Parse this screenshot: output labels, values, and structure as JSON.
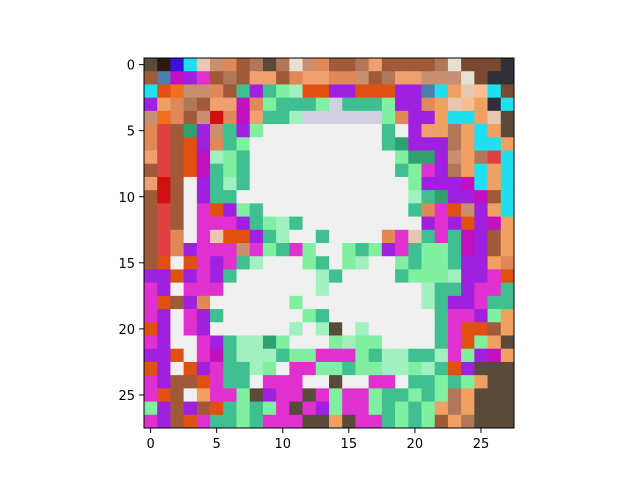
{
  "chart_data": {
    "type": "heatmap",
    "title": "",
    "xlabel": "",
    "ylabel": "",
    "cols": 28,
    "rows": 28,
    "xlim": [
      -0.5,
      27.5
    ],
    "ylim": [
      27.5,
      -0.5
    ],
    "x_ticks": [
      0,
      5,
      10,
      15,
      20,
      25
    ],
    "y_ticks": [
      0,
      5,
      10,
      15,
      20,
      25
    ],
    "grid": false,
    "palette": [
      "#5a4a3a",
      "#2a1a10",
      "#3a10e0",
      "#20e0f0",
      "#e8c8b0",
      "#c89070",
      "#e08858",
      "#f0a070",
      "#a05a3a",
      "#b07858",
      "#909060",
      "#b0c000",
      "#a8d020",
      "#20c8b0",
      "#40e0a0",
      "#20b080",
      "#f0a8a0",
      "#e8e0d0",
      "#7a4a30",
      "#30303a",
      "#4a80b0",
      "#c010c0",
      "#a020e0",
      "#e030d0",
      "#e05010",
      "#f07020",
      "#f0a060",
      "#f8c090",
      "#c07040",
      "#40c090",
      "#80f0a0",
      "#a0f0c0",
      "#30a070",
      "#1a5a3a",
      "#e04040",
      "#d01010",
      "#8020a0",
      "#b0e8f0",
      "#d0d0e0",
      "#603020",
      "#f0f0f0"
    ],
    "rows_data": [
      "01234568909A56889788889ABBBC",
      "8DEFG8987786776658977555ABCC",
      "3HI5568MFMNOHHFFHHHFFD3J4K3B",
      "FJ69877E6NMMMNVMMMNFF6J4KJC3",
      "5I685S6E7MMOVVVVVVN6FFJ33J40",
      "6R8PF5MFNZYYYYYYYYMYF7J9J3J0",
      "6R8HF6MNZZYYZZZZYYMPFFF9J33J",
      "7R8HEONMZZZZ[[[[ZZYNPPF5J9R3",
      "8R8HEMNMZY[[[[[[[ZZMNGF9J3J3",
      "7S8YFMOMYZZ[[[[[[[ZYNFFFE3J3",
      "8S8YFMMYZ[[[[[[[[ZZYOMPFFE83",
      "8R8YGHFNMYYZZZZZZ[YYM6GH5FJ3",
      "8R8YGGGFMNOMYZZ\\ZZYYYFGFHFEJ",
      "8R6YG4HHFMOZYMY[ZY6G4MGMEF8J",
      "8R6FGGG5GNMGNYYNMNFGMNNMEF8J",
      "8HYHGFGMOZYYNMYNOYYNMNNMFFJ6",
      "FFHFGFMYZZYZYOMZYYYMNNNOFFGH",
      "GFYGGGZZZZZZYOZZZZZZZOMMFGGM",
      "GH8F6ZZ[[[YNYYY[[[[[ZOMFFGMM",
      "GFYGFMY[[ZZYNMYZZ[[[[ZMGGFNJ",
      "HFYGFZZZZZYOYO#YO[[ZZZMGHH8J",
      "GFZYGFMOOPNYZYNONNZZZZMGHNJ&",
      "FFHYGEMOOOMNNGGGNMOOMMOGNFEJ",
      "HFYHFGMMONYGGNNMNNOONOMHF%&%",
      "GF88HGMMZGGGYY#YYGGZMMNMNJ%%",
      "GH8YJGGN#FGG%GNGGNMMNMN9J%%%",
      "NF8F8HMNMNG%GFNGGNMNMNJ9J%%%",
      "GF8HGMMNMGGG##J#GGMNMN8J9%%%"
    ]
  }
}
